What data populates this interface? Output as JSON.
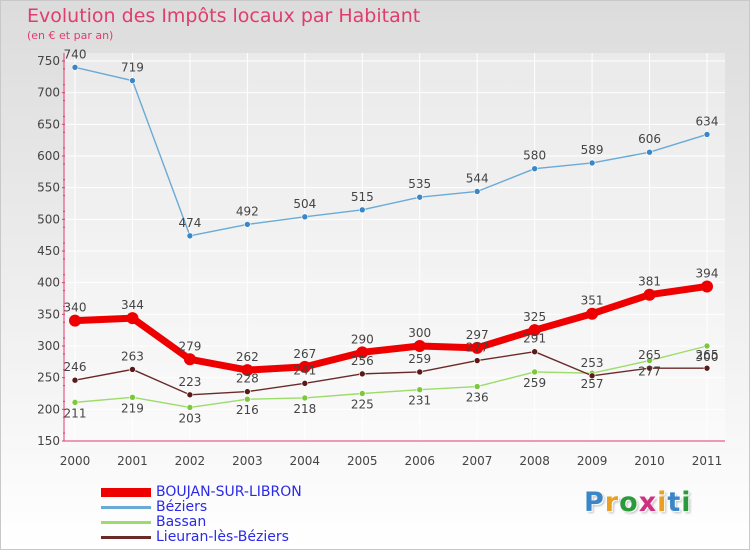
{
  "title": "Evolution des Impôts locaux par Habitant",
  "subtitle": "(en € et par an)",
  "logo": {
    "text": "Proxiti",
    "letters": [
      "P",
      "r",
      "o",
      "x",
      "i",
      "t",
      "i"
    ],
    "colors": [
      "#3a86c8",
      "#e8a020",
      "#2a9a3a",
      "#d03080",
      "#e8a020",
      "#3a86c8",
      "#2a9a3a"
    ]
  },
  "chart_data": {
    "type": "line",
    "x": [
      "2000",
      "2001",
      "2002",
      "2003",
      "2004",
      "2005",
      "2006",
      "2007",
      "2008",
      "2009",
      "2010",
      "2011"
    ],
    "ylim": [
      150,
      750
    ],
    "yticks": [
      150,
      200,
      250,
      300,
      350,
      400,
      450,
      500,
      550,
      600,
      650,
      700,
      750
    ],
    "grid": true,
    "legend_position": "bottom-left",
    "series": [
      {
        "name": "BOUJAN-SUR-LIBRON",
        "values": [
          340,
          344,
          279,
          262,
          267,
          290,
          300,
          297,
          325,
          351,
          381,
          394
        ],
        "labels": [
          "340",
          "344",
          "279",
          "262",
          "267",
          "290",
          "300",
          "297",
          "325",
          "351",
          "381",
          "394"
        ],
        "color": "#ee0000",
        "marker": "#ee0000",
        "legendColor": "#2a2ae8"
      },
      {
        "name": "Béziers",
        "values": [
          740,
          719,
          474,
          492,
          504,
          515,
          535,
          544,
          580,
          589,
          606,
          634
        ],
        "labels": [
          "740",
          "719",
          "474",
          "492",
          "504",
          "515",
          "535",
          "544",
          "580",
          "589",
          "606",
          "634"
        ],
        "color": "#6aaad6",
        "marker": "#3a86c8",
        "legendColor": "#2a2ae8"
      },
      {
        "name": "Bassan",
        "values": [
          211,
          219,
          203,
          216,
          218,
          225,
          231,
          236,
          259,
          257,
          277,
          300
        ],
        "labels": [
          "211",
          "219",
          "203",
          "216",
          "218",
          "225",
          "231",
          "236",
          "259",
          "257",
          "277",
          "300"
        ],
        "color": "#9ddc6a",
        "marker": "#7cc83c",
        "legendColor": "#2a2ae8"
      },
      {
        "name": "Lieuran-lès-Béziers",
        "values": [
          246,
          263,
          223,
          228,
          241,
          256,
          259,
          277,
          291,
          253,
          265,
          265
        ],
        "labels": [
          "246",
          "263",
          "223",
          "228",
          "241",
          "256",
          "259",
          "277",
          "291",
          "253",
          "265",
          "265"
        ],
        "color": "#6b2a2a",
        "marker": "#5a1a1a",
        "legendColor": "#2a2ae8"
      }
    ]
  }
}
